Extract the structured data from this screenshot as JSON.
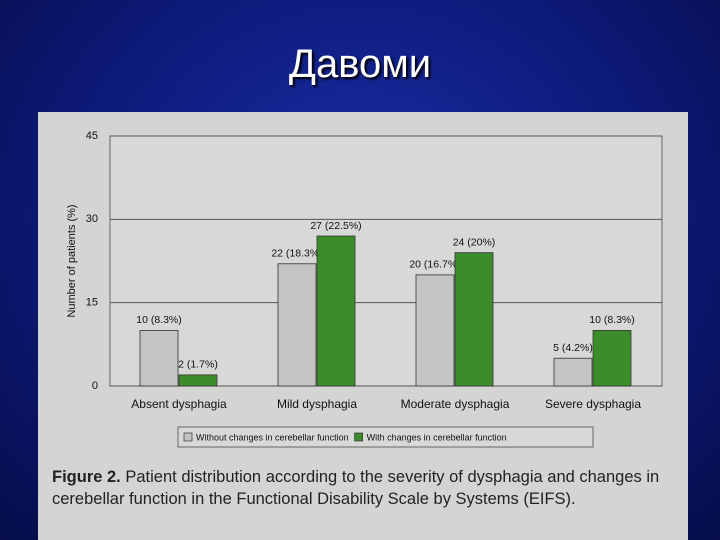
{
  "slide_title": "Давоми",
  "chart_data": {
    "type": "bar",
    "ylabel": "Number of patients (%)",
    "categories": [
      "Absent dysphagia",
      "Mild dysphagia",
      "Moderate dysphagia",
      "Severe dysphagia"
    ],
    "series": [
      {
        "name": "Without changes in cerebellar function",
        "color": "#c4c4c4",
        "values": [
          10,
          22,
          20,
          5
        ],
        "value_labels": [
          "10 (8.3%)",
          "22 (18.3%)",
          "20 (16.7%)",
          "5 (4.2%)"
        ]
      },
      {
        "name": "With changes in cerebellar function",
        "color": "#3d8c2c",
        "values": [
          2,
          27,
          24,
          10
        ],
        "value_labels": [
          "2 (1.7%)",
          "27 (22.5%)",
          "24 (20%)",
          "10 (8.3%)"
        ]
      }
    ],
    "ylim": [
      0,
      45
    ],
    "yticks": [
      0,
      15,
      30,
      45
    ],
    "grid": true
  },
  "figure": {
    "label": "Figure 2.",
    "caption": "Patient distribution according to the severity of dysphagia and changes in cerebellar function in the Functional Disability Scale by Systems (EIFS)."
  }
}
